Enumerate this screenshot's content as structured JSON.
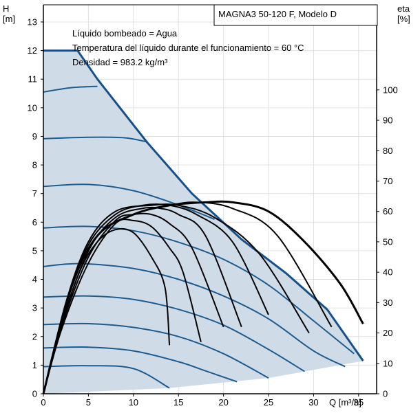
{
  "chart_data": {
    "type": "line",
    "title": "MAGNA3 50-120 F, Modelo D",
    "info": [
      "Líquido bombeado = Agua",
      "Temperatura del líquido durante el funcionamiento = 60 °C",
      "Densidad = 983.2 kg/m³"
    ],
    "xlabel": "Q [m³/h]",
    "ylabel": [
      "H",
      "[m]"
    ],
    "y2label": [
      "eta",
      "[%]"
    ],
    "xlim": [
      0,
      37
    ],
    "ylim": [
      0,
      13.6
    ],
    "y2lim": [
      0,
      128
    ],
    "x_ticks": [
      0,
      5,
      10,
      15,
      20,
      25,
      30,
      35
    ],
    "y_ticks": [
      0,
      1,
      2,
      3,
      4,
      5,
      6,
      7,
      8,
      9,
      10,
      11,
      12,
      13
    ],
    "y2_ticks": [
      0,
      10,
      20,
      30,
      40,
      50,
      60,
      70,
      80,
      90,
      100
    ],
    "colors": {
      "head": "#1d5c8f",
      "max_curve": "#16508a",
      "area": "#cfdce8",
      "eta": "#000000"
    },
    "max_curve": [
      [
        0,
        12
      ],
      [
        3.8,
        12
      ],
      [
        6,
        11
      ],
      [
        11.5,
        8.8
      ],
      [
        16.5,
        7
      ],
      [
        22,
        5.4
      ],
      [
        27,
        4.2
      ],
      [
        31.5,
        2.95
      ],
      [
        35.5,
        1.15
      ]
    ],
    "min_curve": [
      [
        0,
        0
      ],
      [
        14,
        0.2
      ],
      [
        25,
        0.55
      ],
      [
        35.5,
        1.15
      ]
    ],
    "head_series": [
      {
        "points": [
          [
            0,
            0.95
          ],
          [
            5,
            0.98
          ],
          [
            10,
            0.88
          ],
          [
            14,
            0.2
          ]
        ]
      },
      {
        "points": [
          [
            0,
            1.6
          ],
          [
            5,
            1.63
          ],
          [
            10,
            1.5
          ],
          [
            15,
            1.12
          ],
          [
            18,
            0.8
          ],
          [
            21.5,
            0.42
          ]
        ]
      },
      {
        "points": [
          [
            0,
            2.42
          ],
          [
            5,
            2.45
          ],
          [
            10,
            2.32
          ],
          [
            15,
            2.0
          ],
          [
            20,
            1.4
          ],
          [
            25,
            0.55
          ]
        ]
      },
      {
        "points": [
          [
            0,
            3.38
          ],
          [
            5,
            3.42
          ],
          [
            10,
            3.3
          ],
          [
            15,
            2.95
          ],
          [
            20,
            2.4
          ],
          [
            25,
            1.55
          ],
          [
            29,
            0.78
          ]
        ]
      },
      {
        "points": [
          [
            0,
            4.45
          ],
          [
            4,
            4.55
          ],
          [
            10,
            4.38
          ],
          [
            15,
            4.0
          ],
          [
            20,
            3.42
          ],
          [
            25,
            2.62
          ],
          [
            30,
            1.5
          ],
          [
            33.5,
            0.95
          ]
        ]
      },
      {
        "points": [
          [
            0,
            5.8
          ],
          [
            5,
            5.85
          ],
          [
            10,
            5.7
          ],
          [
            15,
            5.3
          ],
          [
            20,
            4.7
          ],
          [
            25,
            3.8
          ],
          [
            30,
            2.55
          ],
          [
            34.5,
            1.4
          ]
        ]
      },
      {
        "points": [
          [
            0,
            7.25
          ],
          [
            5,
            7.32
          ],
          [
            10,
            7.1
          ],
          [
            15,
            6.6
          ],
          [
            19,
            6.1
          ]
        ]
      },
      {
        "points": [
          [
            0,
            8.92
          ],
          [
            5,
            8.97
          ],
          [
            9,
            8.95
          ],
          [
            11.6,
            8.8
          ]
        ]
      },
      {
        "points": [
          [
            0,
            10.55
          ],
          [
            3,
            10.7
          ],
          [
            6,
            10.75
          ]
        ]
      }
    ],
    "eta_series": [
      {
        "points": [
          [
            0,
            0
          ],
          [
            1.5,
            18
          ],
          [
            4,
            40
          ],
          [
            6,
            50
          ],
          [
            8,
            54
          ],
          [
            10,
            53
          ],
          [
            12,
            45
          ],
          [
            13.5,
            35
          ],
          [
            14,
            16
          ]
        ]
      },
      {
        "points": [
          [
            0,
            0
          ],
          [
            2,
            21
          ],
          [
            5,
            43
          ],
          [
            8,
            56
          ],
          [
            10,
            57
          ],
          [
            12,
            55
          ],
          [
            14,
            48
          ],
          [
            15.5,
            40
          ],
          [
            17.5,
            17
          ]
        ]
      },
      {
        "points": [
          [
            0,
            0
          ],
          [
            2,
            22
          ],
          [
            5,
            45
          ],
          [
            8,
            57
          ],
          [
            10,
            59
          ],
          [
            12,
            59
          ],
          [
            14,
            56
          ],
          [
            16.5,
            48
          ],
          [
            20,
            22
          ]
        ]
      },
      {
        "points": [
          [
            0,
            0
          ],
          [
            2,
            23
          ],
          [
            5,
            47
          ],
          [
            8,
            58
          ],
          [
            11,
            61
          ],
          [
            13,
            61
          ],
          [
            15,
            59
          ],
          [
            18,
            52
          ],
          [
            22,
            22
          ]
        ]
      },
      {
        "points": [
          [
            0,
            0
          ],
          [
            2.5,
            29
          ],
          [
            5,
            49
          ],
          [
            8,
            59
          ],
          [
            11,
            62
          ],
          [
            14,
            62
          ],
          [
            17,
            59
          ],
          [
            21,
            50
          ],
          [
            25,
            26
          ]
        ]
      },
      {
        "points": [
          [
            0,
            0
          ],
          [
            2.5,
            30
          ],
          [
            5,
            50
          ],
          [
            8,
            60
          ],
          [
            12,
            62
          ],
          [
            15,
            62
          ],
          [
            19,
            58
          ],
          [
            24,
            46
          ],
          [
            29.5,
            20
          ]
        ]
      },
      {
        "points": [
          [
            0,
            0
          ],
          [
            3,
            34
          ],
          [
            6,
            52
          ],
          [
            10,
            59
          ],
          [
            14,
            62
          ],
          [
            17,
            63
          ],
          [
            21,
            61
          ],
          [
            26,
            52
          ],
          [
            32,
            22
          ]
        ]
      },
      {
        "points": [
          [
            0,
            0
          ],
          [
            3,
            34
          ],
          [
            6,
            52
          ],
          [
            10,
            59
          ],
          [
            14,
            62
          ],
          [
            18,
            63
          ],
          [
            21,
            63
          ],
          [
            25,
            60
          ],
          [
            29,
            50
          ],
          [
            33,
            36
          ],
          [
            35.5,
            23
          ]
        ]
      }
    ]
  }
}
